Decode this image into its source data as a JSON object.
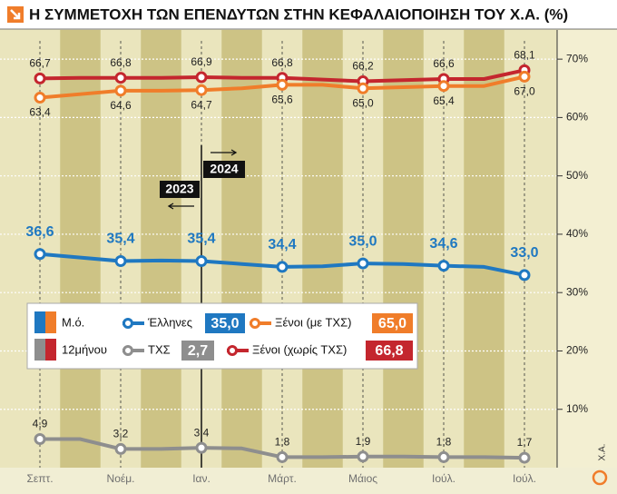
{
  "chart_data": {
    "type": "line",
    "title": "Η ΣΥΜΜΕΤΟΧΗ ΤΩΝ ΕΠΕΝΔΥΤΩΝ ΣΤΗΝ ΚΕΦΑΛΑΙΟΠΟΙΗΣΗ ΤΟΥ Χ.Α. (%)",
    "categories": [
      "Σεπτ.",
      null,
      "Νοέμ.",
      null,
      "Ιαν.",
      null,
      "Μάρτ.",
      null,
      "Μάιος",
      null,
      "Ιούλ.",
      null,
      "Ιούλ."
    ],
    "ylim": [
      0,
      75
    ],
    "yticks": [
      {
        "value": 10,
        "label": "10%"
      },
      {
        "value": 20,
        "label": "20%"
      },
      {
        "value": 30,
        "label": "30%"
      },
      {
        "value": 40,
        "label": "40%"
      },
      {
        "value": 50,
        "label": "50%"
      },
      {
        "value": 60,
        "label": "60%"
      },
      {
        "value": 70,
        "label": "70%"
      }
    ],
    "legend_heading": {
      "line1": "Μ.ό.",
      "line2": "12μήνου"
    },
    "annotations": [
      "2023",
      "2024"
    ],
    "source": "Χ.Α.",
    "series": [
      {
        "name": "Ξένοι (χωρίς ΤΧΣ)",
        "color": "#c4262e",
        "label_pos": "above",
        "values": [
          66.7,
          66.8,
          66.8,
          66.8,
          66.9,
          66.8,
          66.8,
          66.5,
          66.2,
          66.4,
          66.6,
          66.6,
          68.1
        ],
        "value_labels": [
          "66,7",
          null,
          "66,8",
          null,
          "66,9",
          null,
          "66,8",
          null,
          "66,2",
          null,
          "66,6",
          null,
          "68,1"
        ],
        "average": 66.8,
        "average_label": "66,8"
      },
      {
        "name": "Ξένοι (με ΤΧΣ)",
        "color": "#f07d2a",
        "label_pos": "below",
        "values": [
          63.4,
          64.0,
          64.6,
          64.6,
          64.7,
          65.0,
          65.6,
          65.6,
          65.0,
          65.2,
          65.4,
          65.4,
          67.0
        ],
        "value_labels": [
          "63,4",
          null,
          "64,6",
          null,
          "64,7",
          null,
          "65,6",
          null,
          "65,0",
          null,
          "65,4",
          null,
          "67,0"
        ],
        "average": 65.0,
        "average_label": "65,0"
      },
      {
        "name": "Έλληνες",
        "color": "#1f78c1",
        "label_pos": "above_big",
        "values": [
          36.6,
          36.0,
          35.4,
          35.5,
          35.4,
          34.9,
          34.4,
          34.5,
          35.0,
          34.9,
          34.6,
          34.4,
          33.0
        ],
        "value_labels": [
          "36,6",
          null,
          "35,4",
          null,
          "35,4",
          null,
          "34,4",
          null,
          "35,0",
          null,
          "34,6",
          null,
          "33,0"
        ],
        "average": 35.0,
        "average_label": "35,0"
      },
      {
        "name": "ΤΧΣ",
        "color": "#8e8e8e",
        "label_pos": "above",
        "values": [
          4.9,
          4.9,
          3.2,
          3.2,
          3.4,
          3.3,
          1.8,
          1.8,
          1.9,
          1.9,
          1.8,
          1.8,
          1.7
        ],
        "value_labels": [
          "4,9",
          null,
          "3,2",
          null,
          "3,4",
          null,
          "1,8",
          null,
          "1,9",
          null,
          "1,8",
          null,
          "1,7"
        ],
        "average": 2.7,
        "average_label": "2,7"
      }
    ]
  }
}
